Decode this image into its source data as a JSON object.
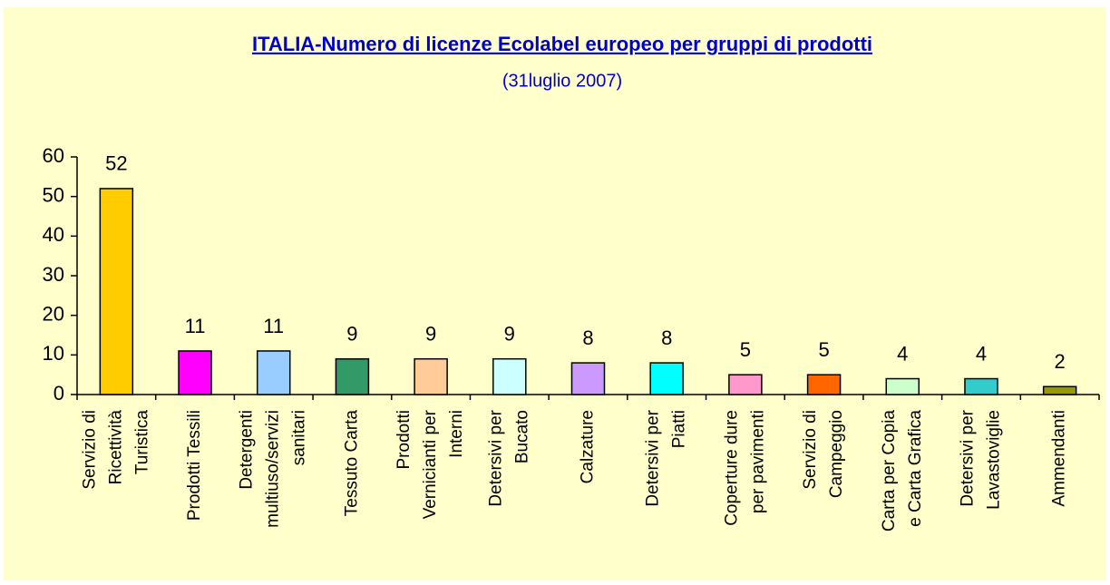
{
  "chart_data": {
    "type": "bar",
    "title": "ITALIA-Numero di licenze Ecolabel europeo per gruppi di prodotti",
    "subtitle": "(31luglio 2007)",
    "categories": [
      [
        "Servizio di",
        "Ricettività",
        "Turistica"
      ],
      [
        "Prodotti Tessili"
      ],
      [
        "Detergenti",
        "multiuso/servizi",
        "sanitari"
      ],
      [
        "Tessuto Carta"
      ],
      [
        "Prodotti",
        "Vernicianti per",
        "Interni"
      ],
      [
        "Detersivi per",
        "Bucato"
      ],
      [
        "Calzature"
      ],
      [
        "Detersivi per",
        "Piatti"
      ],
      [
        "Coperture dure",
        "per pavimenti"
      ],
      [
        "Servizio di",
        "Campeggio"
      ],
      [
        "Carta per Copia",
        "e Carta Grafica"
      ],
      [
        "Detersivi per",
        "Lavastoviglie"
      ],
      [
        "Ammendanti"
      ]
    ],
    "values": [
      52,
      11,
      11,
      9,
      9,
      9,
      8,
      8,
      5,
      5,
      4,
      4,
      2
    ],
    "colors": [
      "#ffcc00",
      "#ff00ff",
      "#99ccff",
      "#339966",
      "#ffcc99",
      "#ccffff",
      "#cc99ff",
      "#00ffff",
      "#ff99cc",
      "#ff6600",
      "#ccffcc",
      "#33cccc",
      "#999900"
    ],
    "ylim": [
      0,
      60
    ],
    "yticks": [
      0,
      10,
      20,
      30,
      40,
      50,
      60
    ],
    "grid": false
  }
}
